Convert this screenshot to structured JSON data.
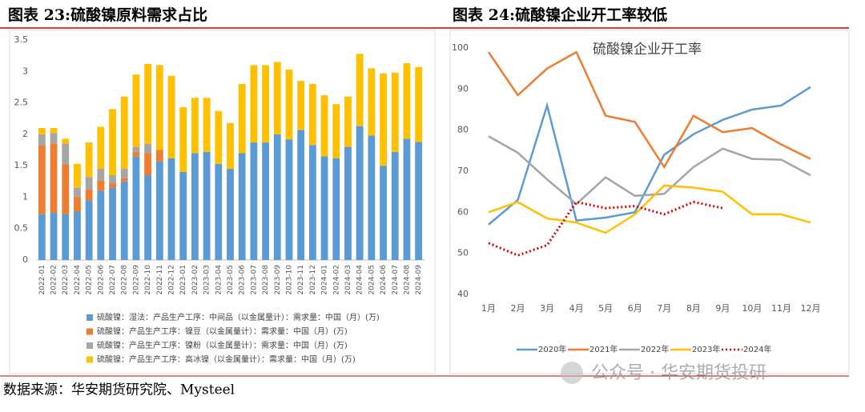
{
  "chart_data": [
    {
      "type": "bar",
      "stacked": true,
      "caption": "图表 23:硫酸镍原料需求占比",
      "categories": [
        "2022-01",
        "2022-02",
        "2022-03",
        "2022-04",
        "2022-05",
        "2022-06",
        "2022-07",
        "2022-08",
        "2022-09",
        "2022-10",
        "2022-11",
        "2022-12",
        "2023-01",
        "2023-02",
        "2023-03",
        "2023-04",
        "2023-05",
        "2023-06",
        "2023-07",
        "2023-08",
        "2023-09",
        "2023-10",
        "2023-11",
        "2023-12",
        "2024-01",
        "2024-02",
        "2024-03",
        "2024-04",
        "2024-05",
        "2024-06",
        "2024-07",
        "2024-08",
        "2024-09"
      ],
      "series": [
        {
          "name": "硫酸镍：湿法：产品生产工序：中间品（以金属量计）：需求量：中国（月）(万)",
          "color": "#5b9bd5",
          "values": [
            0.73,
            0.75,
            0.73,
            0.77,
            0.95,
            1.1,
            1.15,
            1.25,
            1.65,
            1.35,
            1.57,
            1.62,
            1.4,
            1.7,
            1.72,
            1.53,
            1.45,
            1.7,
            1.87,
            1.87,
            2.0,
            1.92,
            2.07,
            1.83,
            1.65,
            1.62,
            1.8,
            2.13,
            1.98,
            1.5,
            1.72,
            1.93,
            1.88
          ]
        },
        {
          "name": "硫酸镍：产品生产工序：镍豆（以金属量计）：需求量：中国（月）(万)",
          "color": "#ed7d31",
          "values": [
            1.09,
            1.1,
            0.79,
            0.23,
            0.17,
            0.17,
            0.07,
            0.05,
            0.07,
            0.35,
            0.18,
            0,
            0,
            0,
            0,
            0,
            0,
            0,
            0,
            0,
            0,
            0,
            0,
            0,
            0,
            0,
            0,
            0,
            0,
            0,
            0,
            0,
            0
          ]
        },
        {
          "name": "硫酸镍：产品生产工序：镍粉（以金属量计）：需求量：中国（月）(万)",
          "color": "#a5a5a5",
          "values": [
            0.18,
            0.17,
            0.33,
            0.15,
            0.2,
            0.18,
            0.13,
            0.15,
            0.08,
            0.15,
            0,
            0,
            0,
            0,
            0,
            0,
            0,
            0,
            0,
            0,
            0,
            0,
            0,
            0,
            0,
            0,
            0,
            0,
            0,
            0,
            0,
            0,
            0
          ]
        },
        {
          "name": "硫酸镍：产品生产工序：高冰镍（以金属量计）：需求量：中国（月）(万)",
          "color": "#ffc000",
          "values": [
            0.1,
            0.08,
            0.08,
            0.38,
            0.55,
            0.67,
            1.05,
            1.15,
            1.15,
            1.27,
            1.35,
            1.31,
            1.03,
            0.88,
            0.86,
            0.84,
            0.73,
            1.1,
            1.23,
            1.23,
            1.15,
            1.11,
            0.78,
            0.97,
            0.97,
            0.86,
            0.8,
            1.15,
            1.07,
            1.47,
            1.26,
            1.2,
            1.19
          ]
        }
      ],
      "ylim": [
        0,
        3.5
      ],
      "yticks": [
        0,
        0.5,
        1,
        1.5,
        2,
        2.5,
        3,
        3.5
      ],
      "grid": false,
      "legend": "bottom"
    },
    {
      "type": "line",
      "caption": "图表 24:硫酸镍企业开工率较低",
      "title": "硫酸镍企业开工率",
      "categories": [
        "1月",
        "2月",
        "3月",
        "4月",
        "5月",
        "6月",
        "7月",
        "8月",
        "9月",
        "10月",
        "11月",
        "12月"
      ],
      "series": [
        {
          "name": "2020年",
          "color": "#5b9bd5",
          "values": [
            57,
            63,
            86,
            58,
            58.7,
            60,
            74,
            79,
            82.5,
            85,
            86,
            90.5
          ]
        },
        {
          "name": "2021年",
          "color": "#ed7d31",
          "values": [
            99,
            88.5,
            95,
            99,
            83.5,
            82,
            71,
            83.5,
            79.5,
            80.5,
            76.5,
            73
          ]
        },
        {
          "name": "2022年",
          "color": "#a5a5a5",
          "values": [
            78.5,
            74.5,
            68,
            62,
            68.5,
            64,
            64.5,
            71,
            75.5,
            73,
            72.8,
            69
          ]
        },
        {
          "name": "2023年",
          "color": "#ffc000",
          "values": [
            60,
            62.5,
            58.5,
            57.5,
            55,
            59.5,
            66.5,
            66,
            65,
            59.5,
            59.5,
            57.5
          ]
        },
        {
          "name": "2024年",
          "color": "#e00000",
          "style": "dotted",
          "values": [
            52.5,
            49.5,
            52,
            62.5,
            61,
            61.5,
            59.5,
            62.5,
            61,
            null,
            null,
            null
          ]
        }
      ],
      "ylim": [
        40,
        100
      ],
      "yticks": [
        40,
        50,
        60,
        70,
        80,
        90,
        100
      ],
      "grid": false,
      "legend": "bottom"
    }
  ],
  "source": "数据来源：华安期货研究院、Mysteel",
  "watermark": "公众号 · 华安期货投研"
}
